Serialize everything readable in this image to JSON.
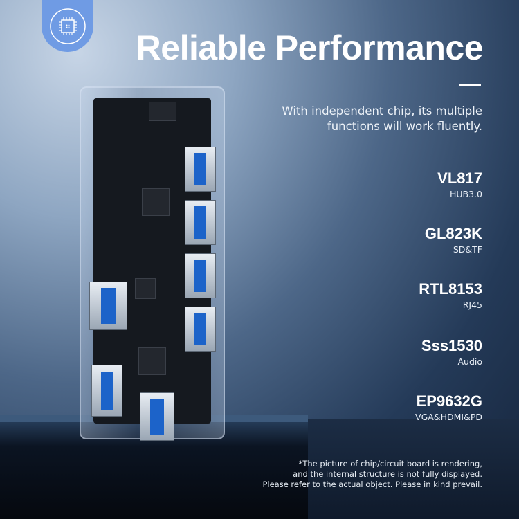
{
  "badge": {
    "icon": "chip-icon",
    "color": "#6f9be4"
  },
  "title": "Reliable Performance",
  "subtitle": [
    "With independent chip, its multiple",
    "functions will work fluently."
  ],
  "chips": [
    {
      "name": "VL817",
      "desc": "HUB3.0"
    },
    {
      "name": "GL823K",
      "desc": "SD&TF"
    },
    {
      "name": "RTL8153",
      "desc": "RJ45"
    },
    {
      "name": "Sss1530",
      "desc": "Audio"
    },
    {
      "name": "EP9632G",
      "desc": "VGA&HDMI&PD"
    }
  ],
  "note": [
    "*The picture of chip/circuit board is rendering,",
    "and the internal structure is not fully displayed.",
    "Please refer to the actual object. Please in kind prevail."
  ]
}
